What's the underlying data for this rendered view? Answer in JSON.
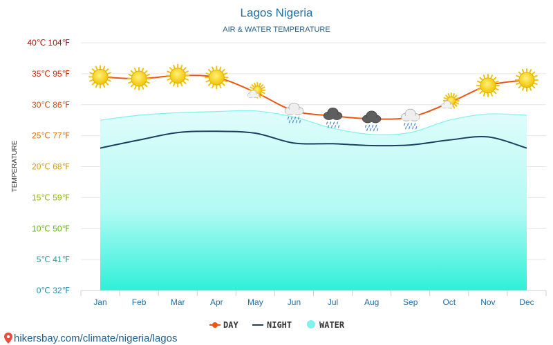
{
  "chart_data": {
    "type": "line",
    "title": "Lagos Nigeria",
    "subtitle": "AIR & WATER TEMPERATURE",
    "ylabel": "TEMPERATURE",
    "ylim": [
      0,
      40
    ],
    "yticks": [
      {
        "value": 0,
        "label": "0℃ 32℉",
        "color": "#1a8fb0"
      },
      {
        "value": 5,
        "label": "5℃ 41℉",
        "color": "#1aa3a3"
      },
      {
        "value": 10,
        "label": "10℃ 50℉",
        "color": "#5fb800"
      },
      {
        "value": 15,
        "label": "15℃ 59℉",
        "color": "#8cb800"
      },
      {
        "value": 20,
        "label": "20℃ 68℉",
        "color": "#d1a000"
      },
      {
        "value": 25,
        "label": "25℃ 77℉",
        "color": "#e07000"
      },
      {
        "value": 30,
        "label": "30℃ 86℉",
        "color": "#e04a00"
      },
      {
        "value": 35,
        "label": "35℃ 95℉",
        "color": "#d42800"
      },
      {
        "value": 40,
        "label": "40℃ 104℉",
        "color": "#cc0000"
      }
    ],
    "categories": [
      "Jan",
      "Feb",
      "Mar",
      "Apr",
      "May",
      "Jun",
      "Jul",
      "Aug",
      "Sep",
      "Oct",
      "Nov",
      "Dec"
    ],
    "series": [
      {
        "name": "DAY",
        "color": "#ee5511",
        "values": [
          34.5,
          34.2,
          34.7,
          34.4,
          32.0,
          29.0,
          28.2,
          27.7,
          28.0,
          30.3,
          33.1,
          34.0
        ]
      },
      {
        "name": "NIGHT",
        "color": "#1c3f5f",
        "values": [
          23.0,
          24.3,
          25.5,
          25.7,
          25.4,
          23.8,
          23.7,
          23.4,
          23.5,
          24.3,
          24.8,
          23.0
        ]
      },
      {
        "name": "WATER",
        "color": "#7ff2ea",
        "values": [
          27.5,
          28.3,
          28.7,
          28.9,
          29.0,
          28.0,
          26.2,
          25.2,
          25.5,
          27.5,
          28.5,
          28.3
        ]
      }
    ],
    "weather_icons": [
      "sun",
      "sun",
      "sun",
      "sun",
      "sun-cloud",
      "cloud-rain",
      "storm-cloud",
      "storm-cloud",
      "cloud-rain",
      "sun-cloud",
      "sun",
      "sun"
    ],
    "legend": {
      "position": "bottom",
      "items": [
        "DAY",
        "NIGHT",
        "WATER"
      ]
    }
  },
  "footer": {
    "text": "hikersbay.com/climate/nigeria/lagos",
    "icon": "map-pin-icon"
  }
}
